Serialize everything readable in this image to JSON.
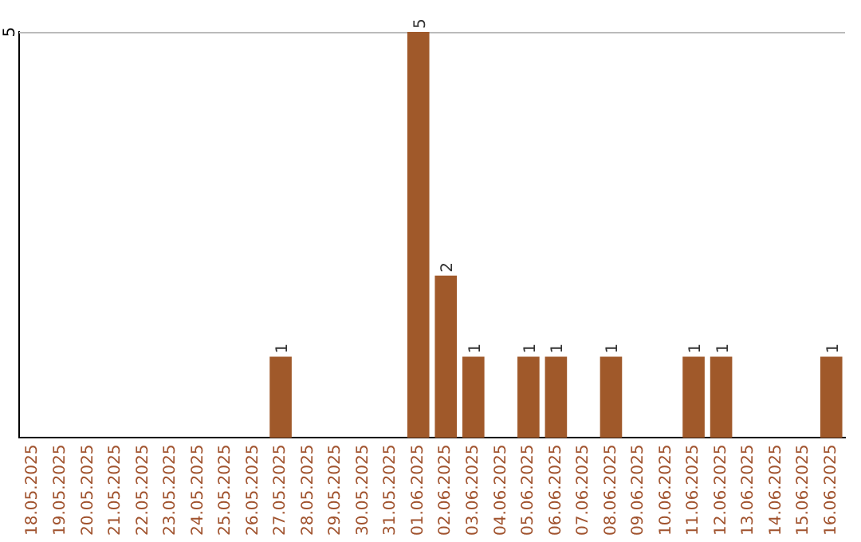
{
  "chart_data": {
    "type": "bar",
    "categories": [
      "18.05.2025",
      "19.05.2025",
      "20.05.2025",
      "21.05.2025",
      "22.05.2025",
      "23.05.2025",
      "24.05.2025",
      "25.05.2025",
      "26.05.2025",
      "27.05.2025",
      "28.05.2025",
      "29.05.2025",
      "30.05.2025",
      "31.05.2025",
      "01.06.2025",
      "02.06.2025",
      "03.06.2025",
      "04.06.2025",
      "05.06.2025",
      "06.06.2025",
      "07.06.2025",
      "08.06.2025",
      "09.06.2025",
      "10.06.2025",
      "11.06.2025",
      "12.06.2025",
      "13.06.2025",
      "14.06.2025",
      "15.06.2025",
      "16.06.2025"
    ],
    "values": [
      0,
      0,
      0,
      0,
      0,
      0,
      0,
      0,
      0,
      1,
      0,
      0,
      0,
      0,
      5,
      2,
      1,
      0,
      1,
      1,
      0,
      1,
      0,
      0,
      1,
      1,
      0,
      0,
      0,
      1
    ],
    "value_labels": [
      null,
      null,
      null,
      null,
      null,
      null,
      null,
      null,
      null,
      "1",
      null,
      null,
      null,
      null,
      "5",
      "2",
      "1",
      null,
      "1",
      "1",
      null,
      "1",
      null,
      null,
      "1",
      "1",
      null,
      null,
      null,
      "1"
    ],
    "color": "#a0592a",
    "ylim": [
      0,
      5
    ],
    "yticks": [
      5
    ],
    "ref_lines": [
      {
        "axis": "y",
        "value": 5,
        "color": "#bbbbbb"
      }
    ]
  }
}
